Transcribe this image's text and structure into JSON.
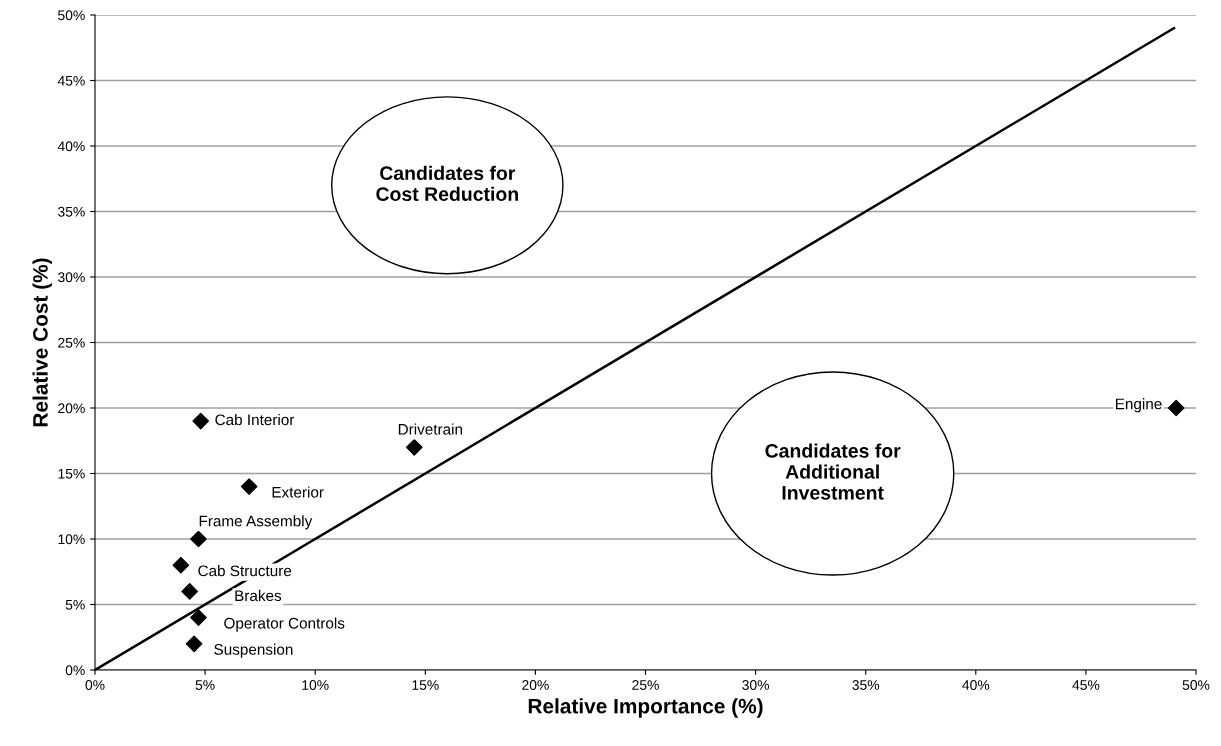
{
  "chart_data": {
    "type": "scatter",
    "xlabel": "Relative Importance (%)",
    "ylabel": "Relative Cost (%)",
    "xlim": [
      0,
      50
    ],
    "ylim": [
      0,
      50
    ],
    "xticks": [
      {
        "value": 0,
        "label": "0%"
      },
      {
        "value": 5,
        "label": "5%"
      },
      {
        "value": 10,
        "label": "10%"
      },
      {
        "value": 15,
        "label": "15%"
      },
      {
        "value": 20,
        "label": "20%"
      },
      {
        "value": 25,
        "label": "25%"
      },
      {
        "value": 30,
        "label": "30%"
      },
      {
        "value": 35,
        "label": "35%"
      },
      {
        "value": 40,
        "label": "40%"
      },
      {
        "value": 45,
        "label": "45%"
      },
      {
        "value": 50,
        "label": "50%"
      }
    ],
    "yticks": [
      {
        "value": 0,
        "label": "0%"
      },
      {
        "value": 5,
        "label": "5%"
      },
      {
        "value": 10,
        "label": "10%"
      },
      {
        "value": 15,
        "label": "15%"
      },
      {
        "value": 20,
        "label": "20%"
      },
      {
        "value": 25,
        "label": "25%"
      },
      {
        "value": 30,
        "label": "30%"
      },
      {
        "value": 35,
        "label": "35%"
      },
      {
        "value": 40,
        "label": "40%"
      },
      {
        "value": 45,
        "label": "45%"
      },
      {
        "value": 50,
        "label": "50%"
      }
    ],
    "grid": "y",
    "marker": "diamond",
    "annotations": [
      "Candidates for\nCost Reduction",
      "Candidates for\nAdditional\nInvestment"
    ],
    "series": [
      {
        "name": "Cab Interior",
        "color": "#000000",
        "x": [
          4.8
        ],
        "values": [
          19
        ]
      },
      {
        "name": "Drivetrain",
        "color": "#000000",
        "x": [
          14.5
        ],
        "values": [
          17
        ]
      },
      {
        "name": "Exterior",
        "color": "#000000",
        "x": [
          7.0
        ],
        "values": [
          14
        ]
      },
      {
        "name": "Frame Assembly",
        "color": "#000000",
        "x": [
          4.7
        ],
        "values": [
          10
        ]
      },
      {
        "name": "Cab Structure",
        "color": "#000000",
        "x": [
          3.9
        ],
        "values": [
          8
        ]
      },
      {
        "name": "Brakes",
        "color": "#000000",
        "x": [
          4.3
        ],
        "values": [
          6
        ]
      },
      {
        "name": "Operator Controls",
        "color": "#000000",
        "x": [
          4.7
        ],
        "values": [
          4
        ]
      },
      {
        "name": "Suspension",
        "color": "#000000",
        "x": [
          4.5
        ],
        "values": [
          2
        ]
      },
      {
        "name": "Engine",
        "color": "#000000",
        "x": [
          49.1
        ],
        "values": [
          20
        ]
      },
      {
        "type": "line",
        "color": "#000000",
        "x": [
          0,
          49
        ],
        "values": [
          0,
          49
        ],
        "marker": "none"
      }
    ]
  }
}
